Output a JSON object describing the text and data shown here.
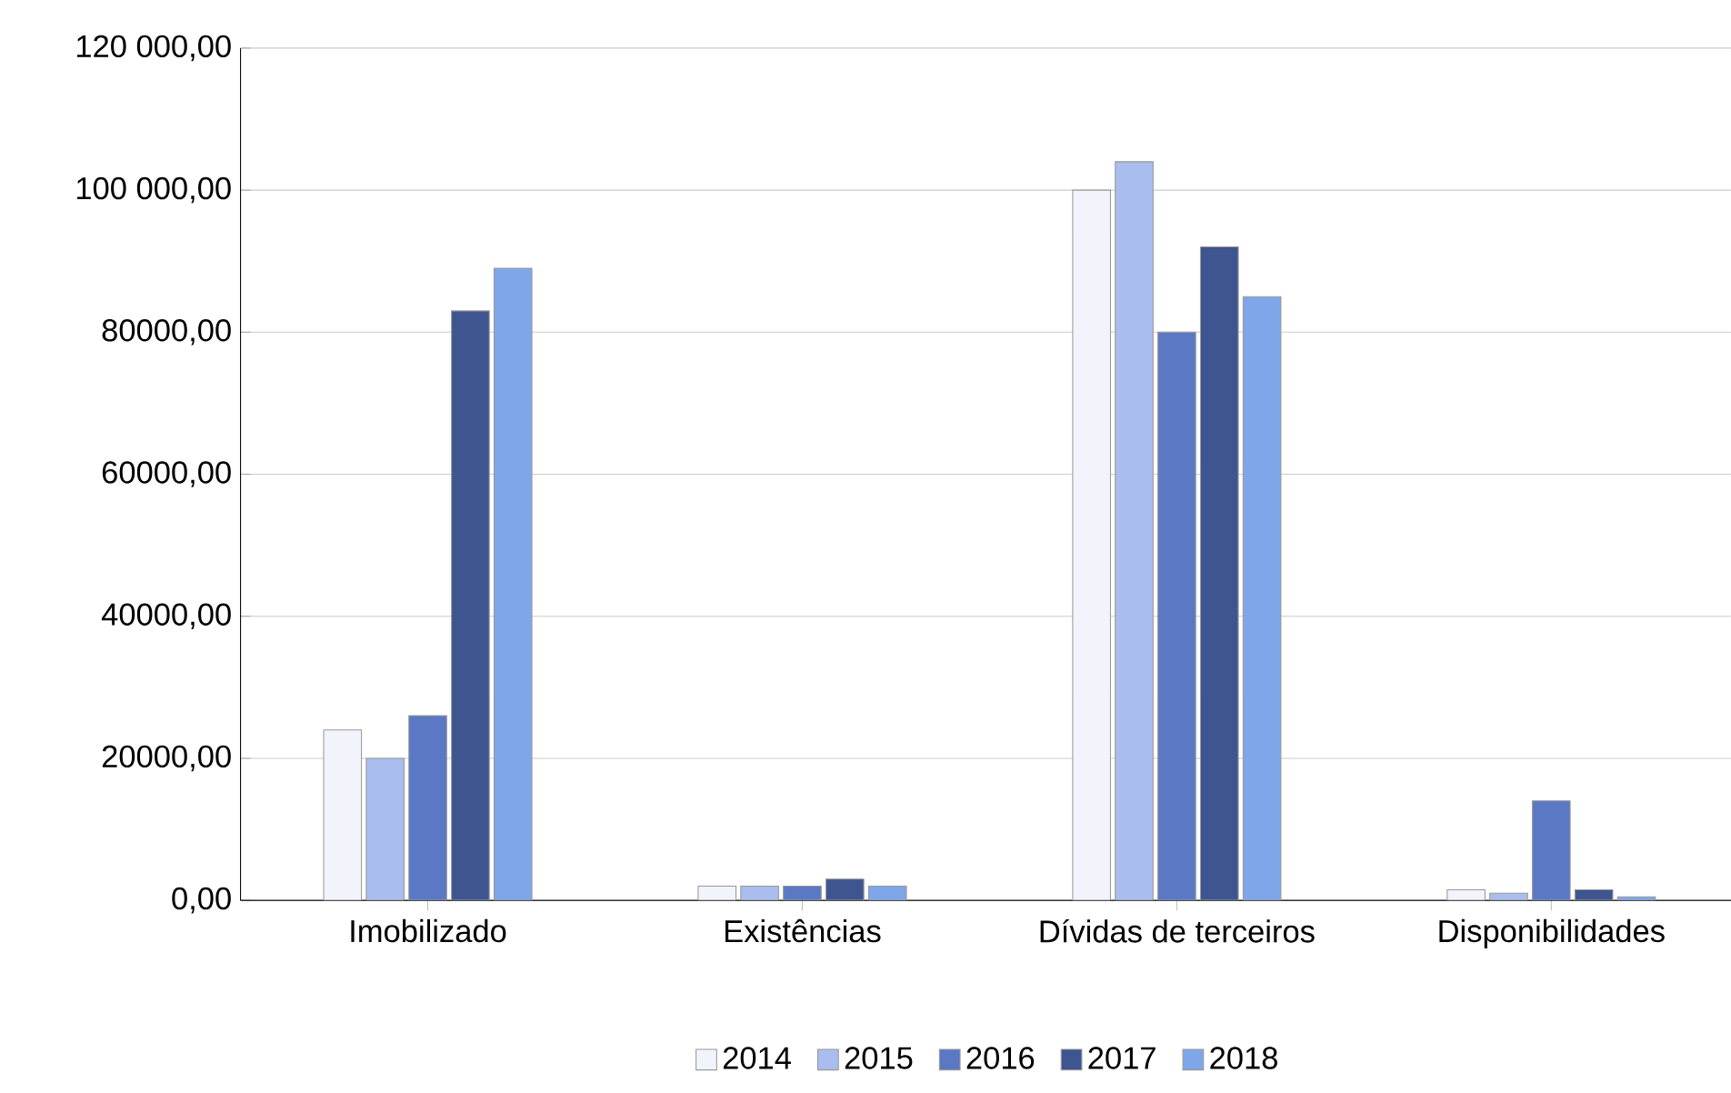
{
  "chart_data": {
    "type": "bar",
    "categories": [
      "Imobilizado",
      "Existências",
      "Dívidas de terceiros",
      "Disponibilidades"
    ],
    "series": [
      {
        "name": "2014",
        "color": "#f2f4fb",
        "values": [
          24000,
          2000,
          100000,
          1500
        ]
      },
      {
        "name": "2015",
        "color": "#a9bdee",
        "values": [
          20000,
          2000,
          104000,
          1000
        ]
      },
      {
        "name": "2016",
        "color": "#5b78c4",
        "values": [
          26000,
          2000,
          80000,
          14000
        ]
      },
      {
        "name": "2017",
        "color": "#3f5590",
        "values": [
          83000,
          3000,
          92000,
          1500
        ]
      },
      {
        "name": "2018",
        "color": "#7ea6e8",
        "values": [
          89000,
          2000,
          85000,
          500
        ]
      }
    ],
    "ylim": [
      0,
      120000
    ],
    "yticks": [
      {
        "value": 0,
        "label": "0,00"
      },
      {
        "value": 20000,
        "label": "20000,00"
      },
      {
        "value": 40000,
        "label": "40000,00"
      },
      {
        "value": 60000,
        "label": "60000,00"
      },
      {
        "value": 80000,
        "label": "80000,00"
      },
      {
        "value": 100000,
        "label": "100 000,00"
      },
      {
        "value": 120000,
        "label": "120 000,00"
      }
    ],
    "grid": "y",
    "legend": "bottom"
  }
}
